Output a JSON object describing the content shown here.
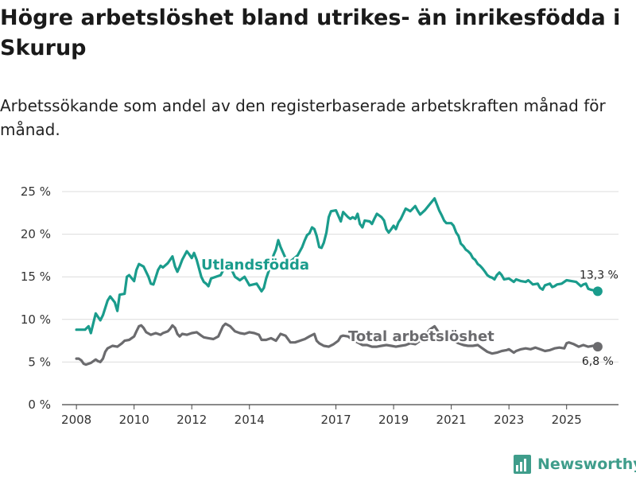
{
  "title": "Högre arbetslöshet bland utrikes- än inrikesfödda i Skurup",
  "subtitle": "Arbetssökande som andel av den registerbaserade arbetskraften månad för månad.",
  "brand": {
    "name": "Newsworthy",
    "icon": "newsworthy-logo-icon",
    "color": "#3f9d8b"
  },
  "chart_data": {
    "type": "line",
    "title": "Högre arbetslöshet bland utrikes- än inrikesfödda i Skurup",
    "subtitle": "Arbetssökande som andel av den registerbaserade arbetskraften månad för månad.",
    "xlabel": "",
    "ylabel": "",
    "xlim": [
      2007.5,
      2026.8
    ],
    "ylim": [
      0,
      25
    ],
    "yticks": [
      0,
      5,
      10,
      15,
      20,
      25
    ],
    "ytick_labels": [
      "0 %",
      "5 %",
      "10 %",
      "15 %",
      "20 %",
      "25 %"
    ],
    "xticks": [
      2008,
      2010,
      2012,
      2014,
      2017,
      2019,
      2021,
      2023,
      2025
    ],
    "xtick_labels": [
      "2008",
      "2010",
      "2012",
      "2014",
      "2017",
      "2019",
      "2021",
      "2023",
      "2025"
    ],
    "grid": true,
    "series": [
      {
        "name": "Utlandsfödda",
        "color": "#1a9c8c",
        "end_label": "13,3 %",
        "points": [
          [
            2008.0,
            8.8
          ],
          [
            2008.3,
            8.8
          ],
          [
            2008.42,
            9.2
          ],
          [
            2008.5,
            8.4
          ],
          [
            2008.58,
            9.5
          ],
          [
            2008.67,
            10.7
          ],
          [
            2008.83,
            9.9
          ],
          [
            2008.92,
            10.5
          ],
          [
            2009.08,
            12.2
          ],
          [
            2009.17,
            12.7
          ],
          [
            2009.33,
            12.0
          ],
          [
            2009.42,
            11.0
          ],
          [
            2009.5,
            12.9
          ],
          [
            2009.67,
            13.0
          ],
          [
            2009.75,
            15.0
          ],
          [
            2009.83,
            15.2
          ],
          [
            2010.0,
            14.5
          ],
          [
            2010.08,
            15.8
          ],
          [
            2010.17,
            16.5
          ],
          [
            2010.33,
            16.2
          ],
          [
            2010.5,
            15.0
          ],
          [
            2010.58,
            14.2
          ],
          [
            2010.67,
            14.1
          ],
          [
            2010.83,
            15.8
          ],
          [
            2010.92,
            16.3
          ],
          [
            2011.0,
            16.1
          ],
          [
            2011.17,
            16.6
          ],
          [
            2011.33,
            17.4
          ],
          [
            2011.42,
            16.2
          ],
          [
            2011.5,
            15.6
          ],
          [
            2011.58,
            16.2
          ],
          [
            2011.67,
            17.0
          ],
          [
            2011.83,
            18.0
          ],
          [
            2011.92,
            17.6
          ],
          [
            2012.0,
            17.2
          ],
          [
            2012.08,
            17.8
          ],
          [
            2012.17,
            17.0
          ],
          [
            2012.33,
            15.0
          ],
          [
            2012.42,
            14.4
          ],
          [
            2012.5,
            14.2
          ],
          [
            2012.58,
            13.9
          ],
          [
            2012.67,
            14.8
          ],
          [
            2013.0,
            15.2
          ],
          [
            2013.25,
            16.8
          ],
          [
            2013.5,
            15.0
          ],
          [
            2013.67,
            14.6
          ],
          [
            2013.83,
            15.0
          ],
          [
            2014.0,
            14.0
          ],
          [
            2014.25,
            14.2
          ],
          [
            2014.42,
            13.3
          ],
          [
            2014.5,
            13.7
          ],
          [
            2014.58,
            14.8
          ],
          [
            2014.75,
            16.5
          ],
          [
            2014.83,
            17.5
          ],
          [
            2014.92,
            18.2
          ],
          [
            2015.0,
            19.3
          ],
          [
            2015.08,
            18.5
          ],
          [
            2015.25,
            17.2
          ],
          [
            2015.42,
            16.8
          ],
          [
            2015.67,
            17.5
          ],
          [
            2015.83,
            18.5
          ],
          [
            2015.92,
            19.3
          ],
          [
            2016.0,
            19.9
          ],
          [
            2016.08,
            20.1
          ],
          [
            2016.17,
            20.8
          ],
          [
            2016.25,
            20.6
          ],
          [
            2016.33,
            19.8
          ],
          [
            2016.42,
            18.5
          ],
          [
            2016.5,
            18.4
          ],
          [
            2016.58,
            19.0
          ],
          [
            2016.67,
            20.2
          ],
          [
            2016.75,
            22.0
          ],
          [
            2016.83,
            22.7
          ],
          [
            2017.0,
            22.8
          ],
          [
            2017.17,
            21.5
          ],
          [
            2017.25,
            22.6
          ],
          [
            2017.42,
            22.0
          ],
          [
            2017.5,
            21.8
          ],
          [
            2017.58,
            22.0
          ],
          [
            2017.67,
            21.8
          ],
          [
            2017.75,
            22.4
          ],
          [
            2017.83,
            21.2
          ],
          [
            2017.92,
            20.8
          ],
          [
            2018.0,
            21.6
          ],
          [
            2018.17,
            21.5
          ],
          [
            2018.25,
            21.2
          ],
          [
            2018.33,
            21.8
          ],
          [
            2018.42,
            22.4
          ],
          [
            2018.58,
            22.0
          ],
          [
            2018.67,
            21.6
          ],
          [
            2018.75,
            20.6
          ],
          [
            2018.83,
            20.2
          ],
          [
            2018.92,
            20.6
          ],
          [
            2019.0,
            21.0
          ],
          [
            2019.08,
            20.6
          ],
          [
            2019.17,
            21.4
          ],
          [
            2019.25,
            21.8
          ],
          [
            2019.42,
            23.0
          ],
          [
            2019.58,
            22.7
          ],
          [
            2019.75,
            23.3
          ],
          [
            2019.83,
            22.8
          ],
          [
            2019.92,
            22.3
          ],
          [
            2020.08,
            22.8
          ],
          [
            2020.25,
            23.5
          ],
          [
            2020.42,
            24.2
          ],
          [
            2020.5,
            23.5
          ],
          [
            2020.58,
            22.8
          ],
          [
            2020.67,
            22.2
          ],
          [
            2020.75,
            21.6
          ],
          [
            2020.83,
            21.3
          ],
          [
            2021.0,
            21.3
          ],
          [
            2021.08,
            21.0
          ],
          [
            2021.17,
            20.2
          ],
          [
            2021.25,
            19.8
          ],
          [
            2021.33,
            18.9
          ],
          [
            2021.42,
            18.6
          ],
          [
            2021.5,
            18.2
          ],
          [
            2021.58,
            18.0
          ],
          [
            2021.67,
            17.7
          ],
          [
            2021.75,
            17.2
          ],
          [
            2021.83,
            17.0
          ],
          [
            2021.92,
            16.5
          ],
          [
            2022.0,
            16.3
          ],
          [
            2022.08,
            16.0
          ],
          [
            2022.17,
            15.6
          ],
          [
            2022.25,
            15.2
          ],
          [
            2022.33,
            15.0
          ],
          [
            2022.42,
            14.9
          ],
          [
            2022.5,
            14.7
          ],
          [
            2022.58,
            15.2
          ],
          [
            2022.67,
            15.5
          ],
          [
            2022.75,
            15.2
          ],
          [
            2022.83,
            14.7
          ],
          [
            2023.0,
            14.8
          ],
          [
            2023.17,
            14.4
          ],
          [
            2023.25,
            14.7
          ],
          [
            2023.42,
            14.5
          ],
          [
            2023.58,
            14.4
          ],
          [
            2023.67,
            14.6
          ],
          [
            2023.83,
            14.1
          ],
          [
            2024.0,
            14.2
          ],
          [
            2024.08,
            13.7
          ],
          [
            2024.17,
            13.5
          ],
          [
            2024.25,
            14.0
          ],
          [
            2024.42,
            14.2
          ],
          [
            2024.5,
            13.8
          ],
          [
            2024.58,
            13.9
          ],
          [
            2024.67,
            14.1
          ],
          [
            2024.83,
            14.2
          ],
          [
            2025.0,
            14.6
          ],
          [
            2025.17,
            14.5
          ],
          [
            2025.33,
            14.4
          ],
          [
            2025.5,
            13.9
          ],
          [
            2025.58,
            14.1
          ],
          [
            2025.67,
            14.2
          ],
          [
            2025.75,
            13.6
          ],
          [
            2025.83,
            13.5
          ],
          [
            2026.08,
            13.3
          ]
        ]
      },
      {
        "name": "Total arbetslöshet",
        "color": "#6b6b6e",
        "end_label": "6,8 %",
        "points": [
          [
            2008.0,
            5.4
          ],
          [
            2008.08,
            5.4
          ],
          [
            2008.17,
            5.2
          ],
          [
            2008.25,
            4.8
          ],
          [
            2008.33,
            4.7
          ],
          [
            2008.42,
            4.8
          ],
          [
            2008.5,
            4.9
          ],
          [
            2008.67,
            5.3
          ],
          [
            2008.75,
            5.1
          ],
          [
            2008.83,
            5.0
          ],
          [
            2008.92,
            5.4
          ],
          [
            2009.0,
            6.2
          ],
          [
            2009.08,
            6.6
          ],
          [
            2009.25,
            6.9
          ],
          [
            2009.42,
            6.8
          ],
          [
            2009.58,
            7.2
          ],
          [
            2009.67,
            7.5
          ],
          [
            2009.83,
            7.6
          ],
          [
            2010.0,
            8.0
          ],
          [
            2010.08,
            8.6
          ],
          [
            2010.17,
            9.2
          ],
          [
            2010.25,
            9.3
          ],
          [
            2010.33,
            9.0
          ],
          [
            2010.42,
            8.5
          ],
          [
            2010.58,
            8.2
          ],
          [
            2010.75,
            8.4
          ],
          [
            2010.92,
            8.2
          ],
          [
            2011.0,
            8.4
          ],
          [
            2011.17,
            8.6
          ],
          [
            2011.25,
            8.9
          ],
          [
            2011.33,
            9.3
          ],
          [
            2011.42,
            9.0
          ],
          [
            2011.5,
            8.3
          ],
          [
            2011.58,
            8.0
          ],
          [
            2011.67,
            8.3
          ],
          [
            2011.83,
            8.2
          ],
          [
            2012.0,
            8.4
          ],
          [
            2012.17,
            8.5
          ],
          [
            2012.33,
            8.1
          ],
          [
            2012.42,
            7.9
          ],
          [
            2012.58,
            7.8
          ],
          [
            2012.75,
            7.7
          ],
          [
            2012.92,
            8.0
          ],
          [
            2013.08,
            9.2
          ],
          [
            2013.17,
            9.5
          ],
          [
            2013.33,
            9.2
          ],
          [
            2013.5,
            8.6
          ],
          [
            2013.67,
            8.4
          ],
          [
            2013.83,
            8.3
          ],
          [
            2014.0,
            8.5
          ],
          [
            2014.17,
            8.4
          ],
          [
            2014.33,
            8.2
          ],
          [
            2014.42,
            7.6
          ],
          [
            2014.58,
            7.6
          ],
          [
            2014.75,
            7.8
          ],
          [
            2014.92,
            7.5
          ],
          [
            2015.08,
            8.3
          ],
          [
            2015.25,
            8.1
          ],
          [
            2015.42,
            7.3
          ],
          [
            2015.58,
            7.3
          ],
          [
            2015.75,
            7.5
          ],
          [
            2015.92,
            7.7
          ],
          [
            2016.08,
            8.0
          ],
          [
            2016.25,
            8.3
          ],
          [
            2016.33,
            7.5
          ],
          [
            2016.42,
            7.2
          ],
          [
            2016.58,
            6.9
          ],
          [
            2016.75,
            6.8
          ],
          [
            2016.92,
            7.1
          ],
          [
            2017.08,
            7.5
          ],
          [
            2017.17,
            8.0
          ],
          [
            2017.25,
            8.1
          ],
          [
            2017.42,
            8.0
          ],
          [
            2017.58,
            7.6
          ],
          [
            2017.75,
            7.3
          ],
          [
            2017.92,
            7.0
          ],
          [
            2018.08,
            7.0
          ],
          [
            2018.25,
            6.8
          ],
          [
            2018.42,
            6.8
          ],
          [
            2018.58,
            6.9
          ],
          [
            2018.75,
            7.0
          ],
          [
            2018.92,
            6.9
          ],
          [
            2019.08,
            6.8
          ],
          [
            2019.25,
            6.9
          ],
          [
            2019.42,
            7.0
          ],
          [
            2019.58,
            7.2
          ],
          [
            2019.75,
            7.1
          ],
          [
            2019.92,
            7.5
          ],
          [
            2020.08,
            8.0
          ],
          [
            2020.25,
            8.8
          ],
          [
            2020.42,
            9.2
          ],
          [
            2020.5,
            8.8
          ],
          [
            2020.58,
            8.4
          ],
          [
            2020.75,
            8.0
          ],
          [
            2020.92,
            7.8
          ],
          [
            2021.08,
            7.5
          ],
          [
            2021.25,
            7.2
          ],
          [
            2021.42,
            7.0
          ],
          [
            2021.58,
            6.9
          ],
          [
            2021.75,
            6.9
          ],
          [
            2021.92,
            7.0
          ],
          [
            2022.08,
            6.6
          ],
          [
            2022.25,
            6.2
          ],
          [
            2022.42,
            6.0
          ],
          [
            2022.58,
            6.1
          ],
          [
            2022.75,
            6.3
          ],
          [
            2022.92,
            6.4
          ],
          [
            2023.0,
            6.5
          ],
          [
            2023.17,
            6.1
          ],
          [
            2023.25,
            6.3
          ],
          [
            2023.42,
            6.5
          ],
          [
            2023.58,
            6.6
          ],
          [
            2023.75,
            6.5
          ],
          [
            2023.92,
            6.7
          ],
          [
            2024.08,
            6.5
          ],
          [
            2024.25,
            6.3
          ],
          [
            2024.42,
            6.4
          ],
          [
            2024.58,
            6.6
          ],
          [
            2024.75,
            6.7
          ],
          [
            2024.92,
            6.6
          ],
          [
            2025.0,
            7.2
          ],
          [
            2025.08,
            7.3
          ],
          [
            2025.25,
            7.1
          ],
          [
            2025.42,
            6.8
          ],
          [
            2025.58,
            7.0
          ],
          [
            2025.75,
            6.8
          ],
          [
            2025.92,
            6.9
          ],
          [
            2026.08,
            6.8
          ]
        ]
      }
    ]
  }
}
